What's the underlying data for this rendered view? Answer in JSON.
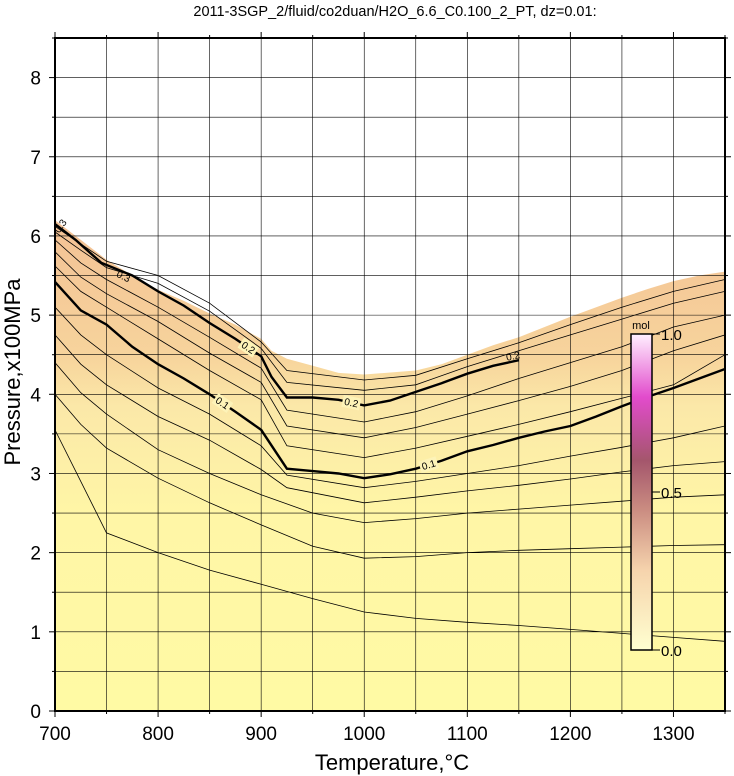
{
  "chart_data": {
    "type": "contour",
    "title": "2011-3SGP_2/fluid/co2duan/H2O_6.6_C0.100_2_PT, dz=0.01:",
    "xlabel": "Temperature,°C",
    "ylabel": "Pressure,x100MPa",
    "xlim": [
      700,
      1350
    ],
    "ylim": [
      0,
      8.5
    ],
    "x_ticks": [
      700,
      800,
      900,
      1000,
      1100,
      1200,
      1300
    ],
    "y_ticks": [
      0,
      1,
      2,
      3,
      4,
      5,
      6,
      7,
      8
    ],
    "x_tick_labels": [
      "700",
      "800",
      "900",
      "1000",
      "1100",
      "1200",
      "1300"
    ],
    "y_tick_labels": [
      "0",
      "1",
      "2",
      "3",
      "4",
      "5",
      "6",
      "7",
      "8"
    ],
    "grid": true,
    "z_interval": 0.01,
    "upper_boundary": [
      [
        700,
        6.2
      ],
      [
        725,
        5.95
      ],
      [
        750,
        5.7
      ],
      [
        775,
        5.5
      ],
      [
        800,
        5.32
      ],
      [
        825,
        5.18
      ],
      [
        850,
        5.02
      ],
      [
        875,
        4.88
      ],
      [
        900,
        4.7
      ],
      [
        910,
        4.55
      ],
      [
        925,
        4.45
      ],
      [
        950,
        4.36
      ],
      [
        975,
        4.27
      ],
      [
        1000,
        4.25
      ],
      [
        1050,
        4.3
      ],
      [
        1075,
        4.38
      ],
      [
        1100,
        4.5
      ],
      [
        1125,
        4.62
      ],
      [
        1150,
        4.72
      ],
      [
        1175,
        4.85
      ],
      [
        1200,
        4.98
      ],
      [
        1225,
        5.1
      ],
      [
        1250,
        5.22
      ],
      [
        1275,
        5.33
      ],
      [
        1300,
        5.43
      ],
      [
        1325,
        5.5
      ],
      [
        1350,
        5.55
      ]
    ],
    "labeled_contours": [
      {
        "level": 0.1,
        "label": "0.1",
        "points": [
          [
            700,
            5.42
          ],
          [
            725,
            5.06
          ],
          [
            750,
            4.88
          ],
          [
            775,
            4.6
          ],
          [
            800,
            4.38
          ],
          [
            825,
            4.2
          ],
          [
            850,
            4.0
          ],
          [
            875,
            3.78
          ],
          [
            900,
            3.55
          ],
          [
            925,
            3.06
          ],
          [
            950,
            3.03
          ],
          [
            975,
            3.0
          ],
          [
            1000,
            2.94
          ],
          [
            1025,
            2.99
          ],
          [
            1050,
            3.06
          ],
          [
            1075,
            3.16
          ],
          [
            1100,
            3.28
          ],
          [
            1125,
            3.36
          ],
          [
            1150,
            3.45
          ],
          [
            1175,
            3.53
          ],
          [
            1200,
            3.6
          ],
          [
            1225,
            3.72
          ],
          [
            1250,
            3.85
          ],
          [
            1275,
            3.97
          ],
          [
            1300,
            4.08
          ],
          [
            1325,
            4.2
          ],
          [
            1350,
            4.32
          ]
        ]
      },
      {
        "level": 0.2,
        "label": "0.2",
        "points": [
          [
            700,
            6.15
          ],
          [
            720,
            5.95
          ],
          [
            745,
            5.66
          ],
          [
            775,
            5.5
          ],
          [
            800,
            5.3
          ],
          [
            825,
            5.12
          ],
          [
            850,
            4.9
          ],
          [
            875,
            4.7
          ],
          [
            900,
            4.48
          ],
          [
            910,
            4.22
          ],
          [
            925,
            3.96
          ],
          [
            950,
            3.96
          ],
          [
            975,
            3.93
          ],
          [
            1000,
            3.86
          ],
          [
            1025,
            3.92
          ],
          [
            1050,
            4.03
          ],
          [
            1075,
            4.14
          ],
          [
            1100,
            4.26
          ],
          [
            1125,
            4.36
          ],
          [
            1150,
            4.43
          ]
        ]
      }
    ],
    "thin_contours": [
      {
        "points": [
          [
            700,
            3.55
          ],
          [
            725,
            2.9
          ],
          [
            750,
            2.25
          ],
          [
            800,
            2.0
          ],
          [
            850,
            1.78
          ],
          [
            900,
            1.6
          ],
          [
            950,
            1.42
          ],
          [
            1000,
            1.25
          ],
          [
            1050,
            1.17
          ],
          [
            1100,
            1.12
          ],
          [
            1150,
            1.08
          ],
          [
            1200,
            1.03
          ],
          [
            1250,
            0.98
          ],
          [
            1300,
            0.93
          ],
          [
            1350,
            0.88
          ]
        ]
      },
      {
        "points": [
          [
            700,
            4.0
          ],
          [
            725,
            3.62
          ],
          [
            750,
            3.32
          ],
          [
            800,
            2.94
          ],
          [
            850,
            2.63
          ],
          [
            900,
            2.35
          ],
          [
            950,
            2.08
          ],
          [
            1000,
            1.93
          ],
          [
            1050,
            1.95
          ],
          [
            1100,
            2.0
          ],
          [
            1150,
            2.03
          ],
          [
            1200,
            2.05
          ],
          [
            1250,
            2.07
          ],
          [
            1300,
            2.09
          ],
          [
            1350,
            2.1
          ]
        ]
      },
      {
        "points": [
          [
            700,
            4.4
          ],
          [
            725,
            4.02
          ],
          [
            750,
            3.75
          ],
          [
            800,
            3.3
          ],
          [
            850,
            3.0
          ],
          [
            900,
            2.73
          ],
          [
            950,
            2.5
          ],
          [
            1000,
            2.38
          ],
          [
            1050,
            2.43
          ],
          [
            1100,
            2.5
          ],
          [
            1150,
            2.55
          ],
          [
            1200,
            2.6
          ],
          [
            1250,
            2.65
          ],
          [
            1300,
            2.7
          ],
          [
            1350,
            2.73
          ]
        ]
      },
      {
        "points": [
          [
            700,
            4.75
          ],
          [
            725,
            4.38
          ],
          [
            750,
            4.12
          ],
          [
            800,
            3.72
          ],
          [
            850,
            3.42
          ],
          [
            900,
            3.05
          ],
          [
            925,
            2.82
          ],
          [
            1000,
            2.63
          ],
          [
            1050,
            2.7
          ],
          [
            1100,
            2.78
          ],
          [
            1150,
            2.85
          ],
          [
            1200,
            2.93
          ],
          [
            1250,
            3.02
          ],
          [
            1300,
            3.1
          ],
          [
            1350,
            3.15
          ]
        ]
      },
      {
        "points": [
          [
            700,
            5.1
          ],
          [
            725,
            4.75
          ],
          [
            750,
            4.5
          ],
          [
            800,
            4.08
          ],
          [
            850,
            3.75
          ],
          [
            900,
            3.35
          ],
          [
            925,
            2.98
          ],
          [
            1000,
            2.82
          ],
          [
            1050,
            2.9
          ],
          [
            1100,
            3.0
          ],
          [
            1150,
            3.1
          ],
          [
            1200,
            3.22
          ],
          [
            1250,
            3.33
          ],
          [
            1300,
            3.45
          ],
          [
            1350,
            3.6
          ]
        ]
      },
      {
        "points": [
          [
            700,
            5.62
          ],
          [
            725,
            5.3
          ],
          [
            750,
            5.1
          ],
          [
            800,
            4.7
          ],
          [
            850,
            4.3
          ],
          [
            900,
            3.93
          ],
          [
            925,
            3.35
          ],
          [
            1000,
            3.2
          ],
          [
            1050,
            3.32
          ],
          [
            1100,
            3.47
          ],
          [
            1150,
            3.62
          ],
          [
            1200,
            3.78
          ],
          [
            1250,
            3.95
          ],
          [
            1300,
            4.12
          ],
          [
            1350,
            4.5
          ]
        ]
      },
      {
        "points": [
          [
            700,
            5.8
          ],
          [
            725,
            5.48
          ],
          [
            750,
            5.27
          ],
          [
            800,
            4.92
          ],
          [
            850,
            4.52
          ],
          [
            900,
            4.15
          ],
          [
            925,
            3.6
          ],
          [
            1000,
            3.45
          ],
          [
            1050,
            3.58
          ],
          [
            1100,
            3.75
          ],
          [
            1150,
            3.92
          ],
          [
            1200,
            4.1
          ],
          [
            1250,
            4.3
          ],
          [
            1300,
            4.55
          ],
          [
            1350,
            4.75
          ]
        ]
      },
      {
        "points": [
          [
            700,
            5.95
          ],
          [
            725,
            5.66
          ],
          [
            750,
            5.45
          ],
          [
            800,
            5.1
          ],
          [
            850,
            4.72
          ],
          [
            900,
            4.33
          ],
          [
            925,
            3.8
          ],
          [
            1000,
            3.65
          ],
          [
            1050,
            3.78
          ],
          [
            1100,
            3.98
          ],
          [
            1150,
            4.2
          ],
          [
            1200,
            4.4
          ],
          [
            1250,
            4.6
          ],
          [
            1300,
            4.85
          ],
          [
            1350,
            5.0
          ]
        ]
      },
      {
        "points": [
          [
            700,
            6.05
          ],
          [
            725,
            5.82
          ],
          [
            750,
            5.6
          ],
          [
            800,
            5.4
          ],
          [
            850,
            5.05
          ],
          [
            900,
            4.58
          ],
          [
            925,
            4.15
          ],
          [
            1000,
            4.05
          ],
          [
            1050,
            4.12
          ],
          [
            1100,
            4.35
          ],
          [
            1150,
            4.55
          ],
          [
            1200,
            4.75
          ],
          [
            1250,
            4.95
          ],
          [
            1300,
            5.15
          ],
          [
            1350,
            5.3
          ]
        ]
      },
      {
        "points": [
          [
            700,
            6.12
          ],
          [
            725,
            5.9
          ],
          [
            750,
            5.68
          ],
          [
            800,
            5.5
          ],
          [
            850,
            5.15
          ],
          [
            900,
            4.66
          ],
          [
            925,
            4.3
          ],
          [
            1000,
            4.18
          ],
          [
            1050,
            4.24
          ],
          [
            1100,
            4.45
          ],
          [
            1150,
            4.65
          ],
          [
            1200,
            4.88
          ],
          [
            1250,
            5.1
          ],
          [
            1300,
            5.3
          ],
          [
            1350,
            5.45
          ]
        ]
      }
    ],
    "cluster_labels": [
      {
        "x": 708,
        "y": 6.1,
        "text": "0.3",
        "angle": -55
      },
      {
        "x": 765,
        "y": 5.45,
        "text": "0.3",
        "angle": 25
      },
      {
        "x": 1145,
        "y": 4.44,
        "text": "0.2",
        "angle": -12
      }
    ],
    "colorbar": {
      "unit": "mol",
      "min": 0.0,
      "max": 1.0,
      "tick_labels": [
        "0.0",
        "0.5",
        "1.0"
      ],
      "colors": [
        "#ffffd0",
        "#f6d4ad",
        "#d89a8a",
        "#b05a70",
        "#e24bcc",
        "#ffc8ff"
      ]
    }
  }
}
